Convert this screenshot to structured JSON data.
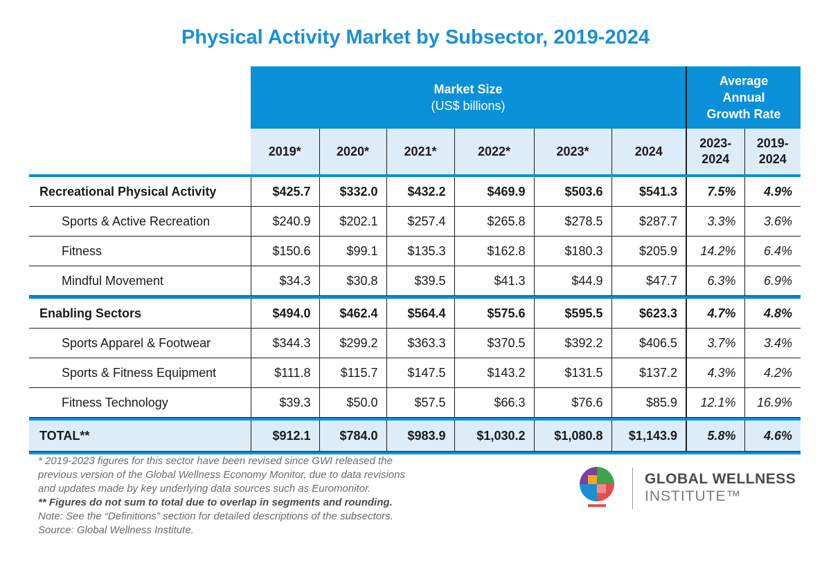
{
  "title": "Physical Activity Market by Subsector, 2019-2024",
  "header": {
    "market_size": "Market Size",
    "market_unit": "(US$ billions)",
    "growth_l1": "Average",
    "growth_l2": "Annual",
    "growth_l3": "Growth Rate",
    "years": [
      "2019*",
      "2020*",
      "2021*",
      "2022*",
      "2023*",
      "2024"
    ],
    "range1_a": "2023-",
    "range1_b": "2024",
    "range2_a": "2019-",
    "range2_b": "2024"
  },
  "rows": [
    {
      "label": "Recreational Physical Activity",
      "values": [
        "$425.7",
        "$332.0",
        "$432.2",
        "$469.9",
        "$503.6",
        "$541.3"
      ],
      "g1": "7.5%",
      "g2": "4.9%"
    },
    {
      "label": "Sports & Active Recreation",
      "values": [
        "$240.9",
        "$202.1",
        "$257.4",
        "$265.8",
        "$278.5",
        "$287.7"
      ],
      "g1": "3.3%",
      "g2": "3.6%"
    },
    {
      "label": "Fitness",
      "values": [
        "$150.6",
        "$99.1",
        "$135.3",
        "$162.8",
        "$180.3",
        "$205.9"
      ],
      "g1": "14.2%",
      "g2": "6.4%"
    },
    {
      "label": "Mindful Movement",
      "values": [
        "$34.3",
        "$30.8",
        "$39.5",
        "$41.3",
        "$44.9",
        "$47.7"
      ],
      "g1": "6.3%",
      "g2": "6.9%"
    },
    {
      "label": "Enabling Sectors",
      "values": [
        "$494.0",
        "$462.4",
        "$564.4",
        "$575.6",
        "$595.5",
        "$623.3"
      ],
      "g1": "4.7%",
      "g2": "4.8%"
    },
    {
      "label": "Sports Apparel & Footwear",
      "values": [
        "$344.3",
        "$299.2",
        "$363.3",
        "$370.5",
        "$392.2",
        "$406.5"
      ],
      "g1": "3.7%",
      "g2": "3.4%"
    },
    {
      "label": "Sports & Fitness Equipment",
      "values": [
        "$111.8",
        "$115.7",
        "$147.5",
        "$143.2",
        "$131.5",
        "$137.2"
      ],
      "g1": "4.3%",
      "g2": "4.2%"
    },
    {
      "label": "Fitness Technology",
      "values": [
        "$39.3",
        "$50.0",
        "$57.5",
        "$66.3",
        "$76.6",
        "$85.9"
      ],
      "g1": "12.1%",
      "g2": "16.9%"
    },
    {
      "label": "TOTAL**",
      "values": [
        "$912.1",
        "$784.0",
        "$983.9",
        "$1,030.2",
        "$1,080.8",
        "$1,143.9"
      ],
      "g1": "5.8%",
      "g2": "4.6%"
    }
  ],
  "notes": {
    "n1": "* 2019-2023 figures for this sector have been revised since GWI released the",
    "n2": "previous version of the Global Wellness Economy Monitor, due to data revisions",
    "n3": "and updates made by key underlying data sources such as Euromonitor.",
    "n4": "** Figures do not sum to total due to overlap in segments and rounding.",
    "n5": "Note: See the “Definitions” section for detailed descriptions of the subsectors.",
    "n6": "Source: Global Wellness Institute."
  },
  "logo": {
    "line1": "GLOBAL WELLNESS",
    "line2": "INSTITUTE™",
    "colors": [
      "#7b3fa0",
      "#3fa34d",
      "#1a8fd6",
      "#e84d4d",
      "#f5a623"
    ]
  },
  "colors": {
    "accent": "#0a8fd9",
    "title": "#1a8fd6",
    "light_band": "#dcecf9"
  },
  "chart_data": {
    "type": "table",
    "title": "Physical Activity Market by Subsector, 2019-2024",
    "columns": [
      "2019*",
      "2020*",
      "2021*",
      "2022*",
      "2023*",
      "2024",
      "2023-2024",
      "2019-2024"
    ],
    "column_groups": [
      "Market Size (US$ billions)",
      "Average Annual Growth Rate"
    ],
    "row_labels": [
      "Recreational Physical Activity",
      "Sports & Active Recreation",
      "Fitness",
      "Mindful Movement",
      "Enabling Sectors",
      "Sports Apparel & Footwear",
      "Sports & Fitness Equipment",
      "Fitness Technology",
      "TOTAL**"
    ],
    "values": [
      [
        425.7,
        332.0,
        432.2,
        469.9,
        503.6,
        541.3,
        7.5,
        4.9
      ],
      [
        240.9,
        202.1,
        257.4,
        265.8,
        278.5,
        287.7,
        3.3,
        3.6
      ],
      [
        150.6,
        99.1,
        135.3,
        162.8,
        180.3,
        205.9,
        14.2,
        6.4
      ],
      [
        34.3,
        30.8,
        39.5,
        41.3,
        44.9,
        47.7,
        6.3,
        6.9
      ],
      [
        494.0,
        462.4,
        564.4,
        575.6,
        595.5,
        623.3,
        4.7,
        4.8
      ],
      [
        344.3,
        299.2,
        363.3,
        370.5,
        392.2,
        406.5,
        3.7,
        3.4
      ],
      [
        111.8,
        115.7,
        147.5,
        143.2,
        131.5,
        137.2,
        4.3,
        4.2
      ],
      [
        39.3,
        50.0,
        57.5,
        66.3,
        76.6,
        85.9,
        12.1,
        16.9
      ],
      [
        912.1,
        784.0,
        983.9,
        1030.2,
        1080.8,
        1143.9,
        5.8,
        4.6
      ]
    ]
  }
}
